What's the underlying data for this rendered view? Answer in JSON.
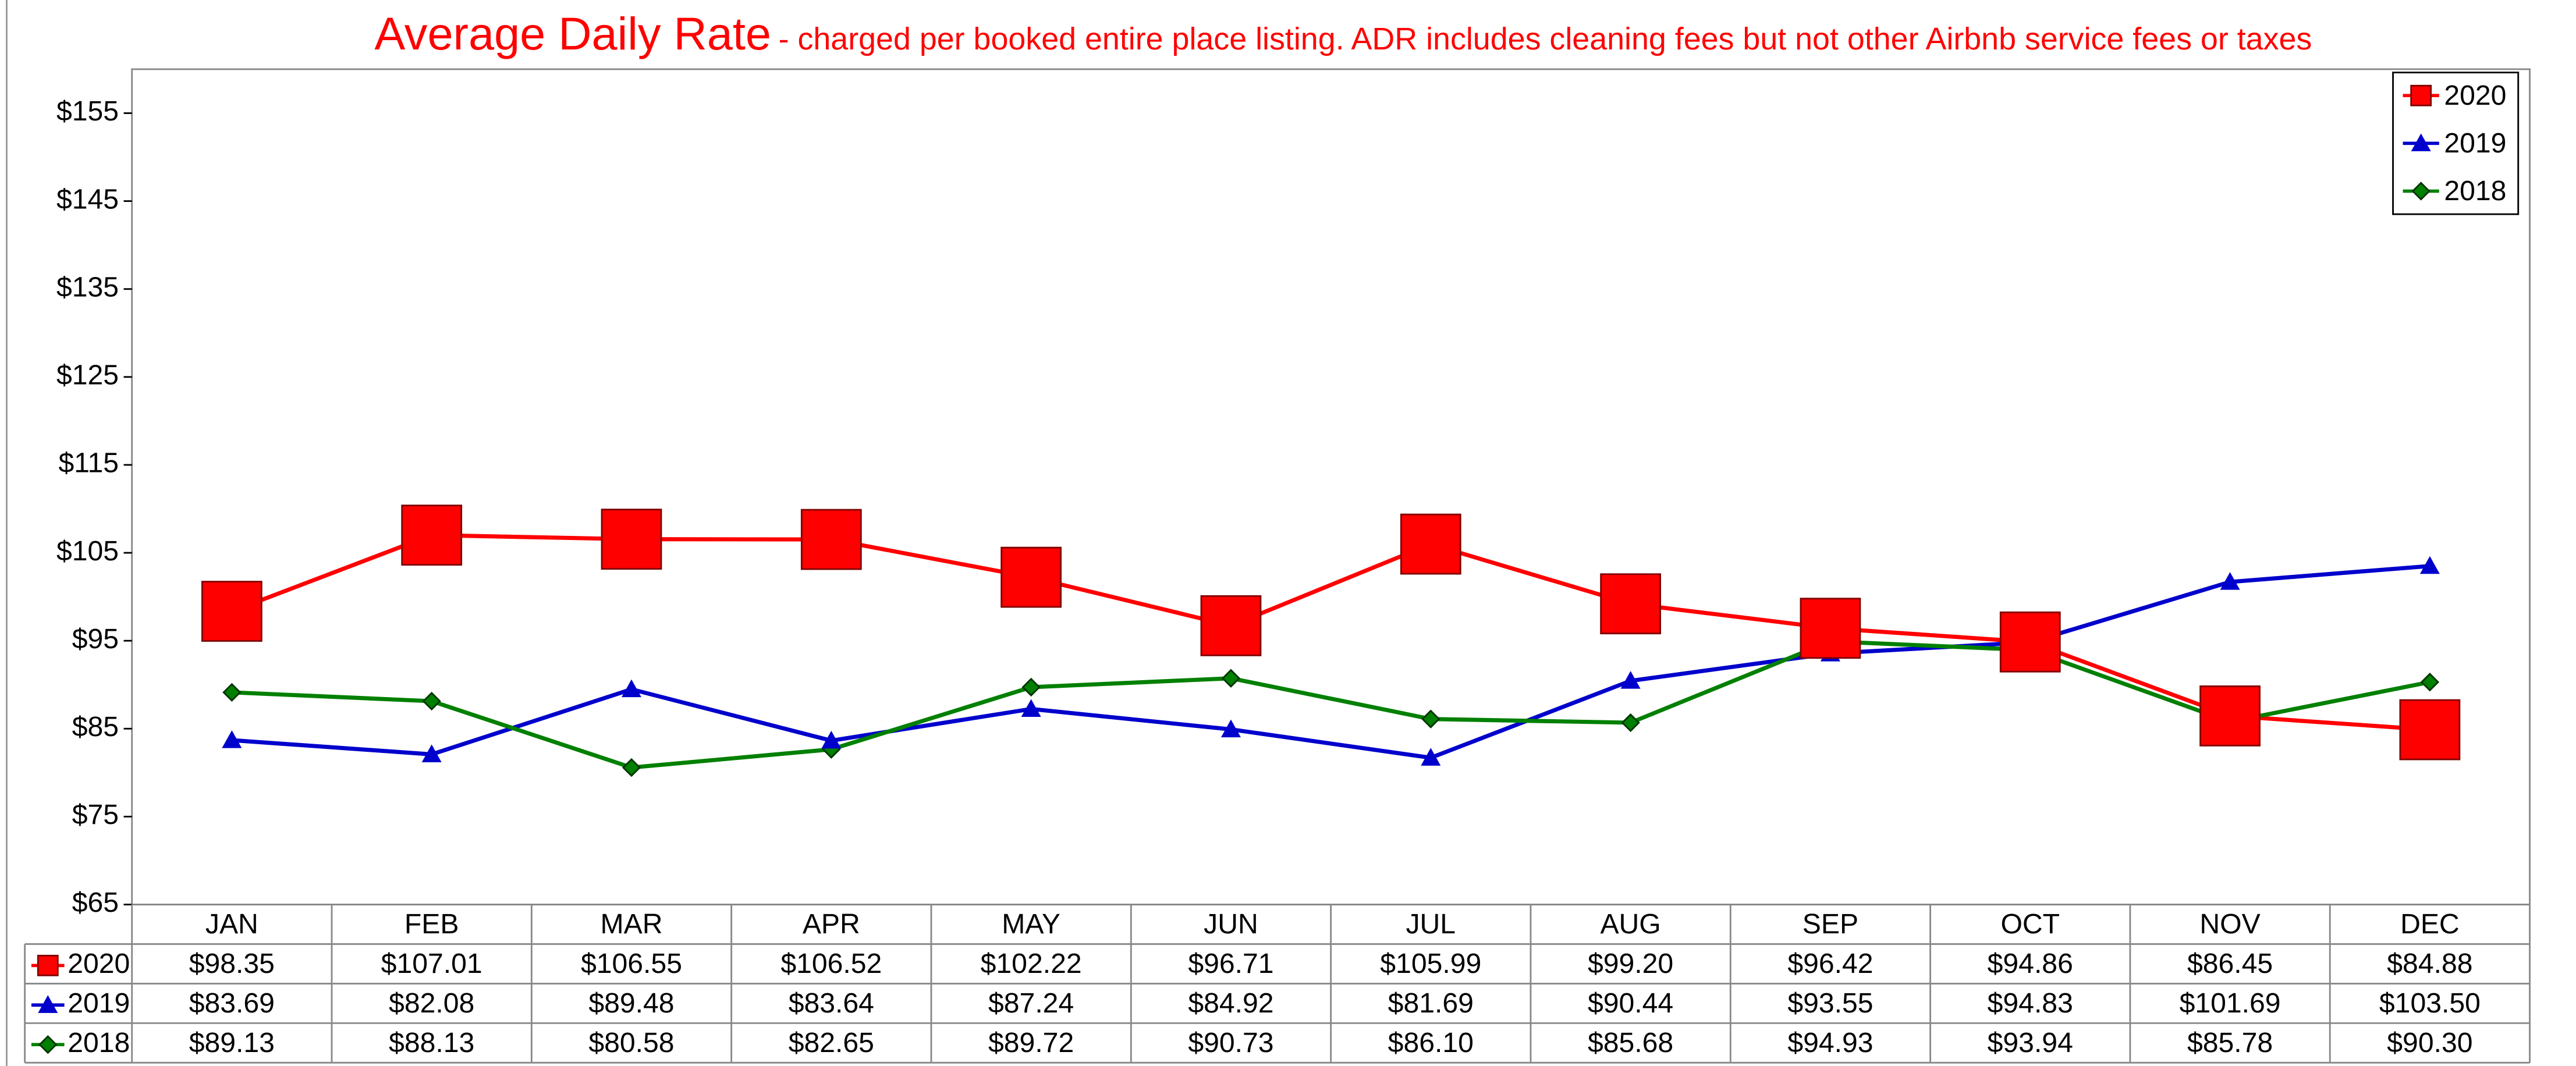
{
  "chart_data": {
    "type": "line",
    "title": "Average Daily Rate",
    "subtitle": "- charged per booked entire place listing. ADR includes cleaning fees but not other Airbnb service fees or taxes",
    "categories": [
      "JAN",
      "FEB",
      "MAR",
      "APR",
      "MAY",
      "JUN",
      "JUL",
      "AUG",
      "SEP",
      "OCT",
      "NOV",
      "DEC"
    ],
    "ylim": [
      65,
      160
    ],
    "yticks": [
      {
        "value": 65,
        "label": "$65"
      },
      {
        "value": 75,
        "label": "$75"
      },
      {
        "value": 85,
        "label": "$85"
      },
      {
        "value": 95,
        "label": "$95"
      },
      {
        "value": 105,
        "label": "$105"
      },
      {
        "value": 115,
        "label": "$115"
      },
      {
        "value": 125,
        "label": "$125"
      },
      {
        "value": 135,
        "label": "$135"
      },
      {
        "value": 145,
        "label": "$145"
      },
      {
        "value": 155,
        "label": "$155"
      }
    ],
    "legend": "top-right",
    "series": [
      {
        "name": "2020",
        "color": "#ff0000",
        "marker": "square",
        "values": [
          98.35,
          107.01,
          106.55,
          106.52,
          102.22,
          96.71,
          105.99,
          99.2,
          96.42,
          94.86,
          86.45,
          84.88
        ],
        "value_labels": [
          "$98.35",
          "$107.01",
          "$106.55",
          "$106.52",
          "$102.22",
          "$96.71",
          "$105.99",
          "$99.20",
          "$96.42",
          "$94.86",
          "$86.45",
          "$84.88"
        ]
      },
      {
        "name": "2019",
        "color": "#0000cc",
        "marker": "triangle",
        "values": [
          83.69,
          82.08,
          89.48,
          83.64,
          87.24,
          84.92,
          81.69,
          90.44,
          93.55,
          94.83,
          101.69,
          103.5
        ],
        "value_labels": [
          "$83.69",
          "$82.08",
          "$89.48",
          "$83.64",
          "$87.24",
          "$84.92",
          "$81.69",
          "$90.44",
          "$93.55",
          "$94.83",
          "$101.69",
          "$103.50"
        ]
      },
      {
        "name": "2018",
        "color": "#008000",
        "marker": "diamond",
        "values": [
          89.13,
          88.13,
          80.58,
          82.65,
          89.72,
          90.73,
          86.1,
          85.68,
          94.93,
          93.94,
          85.78,
          90.3
        ],
        "value_labels": [
          "$89.13",
          "$88.13",
          "$80.58",
          "$82.65",
          "$89.72",
          "$90.73",
          "$86.10",
          "$85.68",
          "$94.93",
          "$93.94",
          "$85.78",
          "$90.30"
        ]
      }
    ]
  }
}
